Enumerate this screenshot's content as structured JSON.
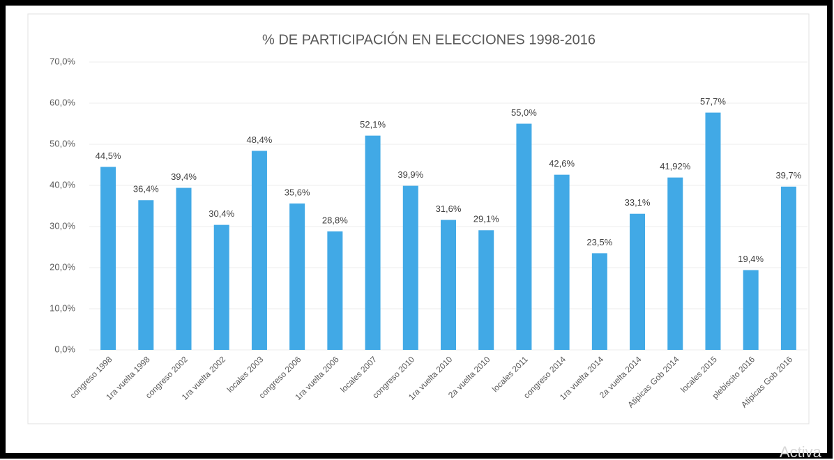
{
  "chart_data": {
    "type": "bar",
    "title": "% DE PARTICIPACIÓN EN ELECCIONES 1998-2016",
    "categories": [
      "congreso 1998",
      "1ra vuelta 1998",
      "congreso 2002",
      "1ra vuelta 2002",
      "locales 2003",
      "congreso 2006",
      "1ra vuelta 2006",
      "locales 2007",
      "congreso 2010",
      "1ra vuelta 2010",
      "2a vuelta 2010",
      "locales 2011",
      "congreso 2014",
      "1ra vuelta 2014",
      "2a vuelta 2014",
      "Atipicas Gob 2014",
      "locales 2015",
      "plebiscito 2016",
      "Atipicas Gob 2016"
    ],
    "values": [
      44.5,
      36.4,
      39.4,
      30.4,
      48.4,
      35.6,
      28.8,
      52.1,
      39.9,
      31.6,
      29.1,
      55.0,
      42.6,
      23.5,
      33.1,
      41.92,
      57.7,
      19.4,
      39.7
    ],
    "value_labels": [
      "44,5%",
      "36,4%",
      "39,4%",
      "30,4%",
      "48,4%",
      "35,6%",
      "28,8%",
      "52,1%",
      "39,9%",
      "31,6%",
      "29,1%",
      "55,0%",
      "42,6%",
      "23,5%",
      "33,1%",
      "41,92%",
      "57,7%",
      "19,4%",
      "39,7%"
    ],
    "color": "#41a9e6",
    "ylim": [
      0,
      70
    ],
    "yticks": [
      {
        "value": 0,
        "label": "0,0%"
      },
      {
        "value": 10,
        "label": "10,0%"
      },
      {
        "value": 20,
        "label": "20,0%"
      },
      {
        "value": 30,
        "label": "30,0%"
      },
      {
        "value": 40,
        "label": "40,0%"
      },
      {
        "value": 50,
        "label": "50,0%"
      },
      {
        "value": 60,
        "label": "60,0%"
      },
      {
        "value": 70,
        "label": "70,0%"
      }
    ],
    "grid": true
  },
  "watermark": "Activa"
}
